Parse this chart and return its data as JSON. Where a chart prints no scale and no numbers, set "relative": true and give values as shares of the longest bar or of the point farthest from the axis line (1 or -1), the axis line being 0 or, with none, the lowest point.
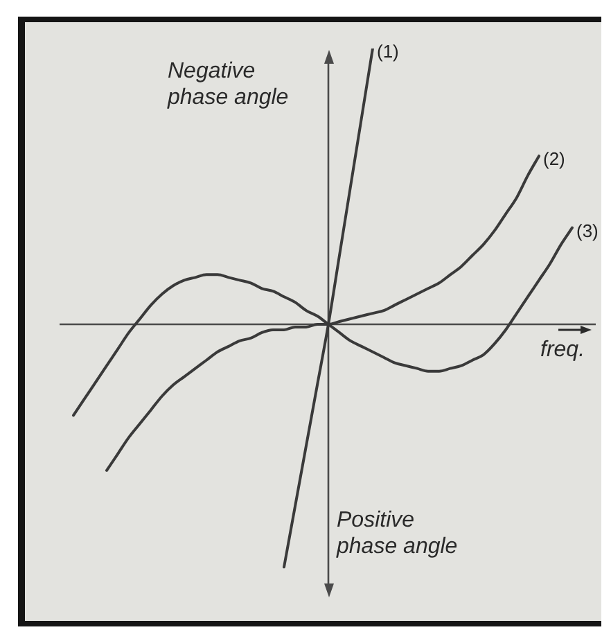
{
  "chart_data": {
    "type": "line",
    "relative": true,
    "xlabel": "freq.",
    "ylabel": "Negative phase angle",
    "annotations": [
      "Positive phase angle"
    ],
    "categories": [
      null,
      null,
      null,
      null,
      null,
      null,
      null,
      null,
      null,
      null,
      null,
      null,
      null,
      null,
      null,
      null,
      null,
      null,
      null,
      null,
      null,
      null,
      null,
      null,
      null,
      null,
      null,
      null,
      null,
      null,
      null,
      null,
      null,
      null,
      null,
      null,
      null,
      null,
      null,
      null,
      null,
      null,
      null,
      null,
      null,
      null,
      null,
      null,
      null
    ],
    "series": [
      {
        "name": "(1)",
        "color": "#3a3a3a",
        "values": [
          null,
          null,
          null,
          null,
          null,
          null,
          null,
          null,
          null,
          null,
          null,
          null,
          null,
          null,
          null,
          null,
          null,
          null,
          null,
          null,
          -0.88,
          -0.66,
          -0.44,
          -0.22,
          0,
          0.25,
          0.5,
          0.75,
          1,
          null,
          null,
          null,
          null,
          null,
          null,
          null,
          null,
          null,
          null,
          null,
          null,
          null,
          null,
          null,
          null,
          null,
          null,
          null,
          null
        ]
      },
      {
        "name": "(2)",
        "color": "#3a3a3a",
        "values": [
          null,
          null,
          null,
          null,
          -0.53,
          -0.47,
          -0.41,
          -0.36,
          -0.31,
          -0.26,
          -0.22,
          -0.19,
          -0.16,
          -0.13,
          -0.1,
          -0.08,
          -0.06,
          -0.05,
          -0.03,
          -0.02,
          -0.02,
          -0.01,
          -0.01,
          0,
          0,
          0.01,
          0.02,
          0.03,
          0.04,
          0.05,
          0.07,
          0.09,
          0.11,
          0.13,
          0.15,
          0.18,
          0.21,
          0.25,
          0.29,
          0.34,
          0.4,
          0.46,
          0.54,
          0.61,
          null,
          null,
          null,
          null,
          null
        ]
      },
      {
        "name": "(3)",
        "color": "#3a3a3a",
        "values": [
          null,
          -0.33,
          -0.27,
          -0.21,
          -0.15,
          -0.09,
          -0.03,
          0.02,
          0.07,
          0.11,
          0.14,
          0.16,
          0.17,
          0.18,
          0.18,
          0.17,
          0.16,
          0.15,
          0.13,
          0.12,
          0.1,
          0.08,
          0.05,
          0.03,
          0,
          -0.03,
          -0.06,
          -0.08,
          -0.1,
          -0.12,
          -0.14,
          -0.15,
          -0.16,
          -0.17,
          -0.17,
          -0.16,
          -0.15,
          -0.13,
          -0.11,
          -0.07,
          -0.02,
          0.04,
          0.1,
          0.16,
          0.22,
          0.29,
          0.35,
          null,
          null
        ]
      }
    ]
  }
}
